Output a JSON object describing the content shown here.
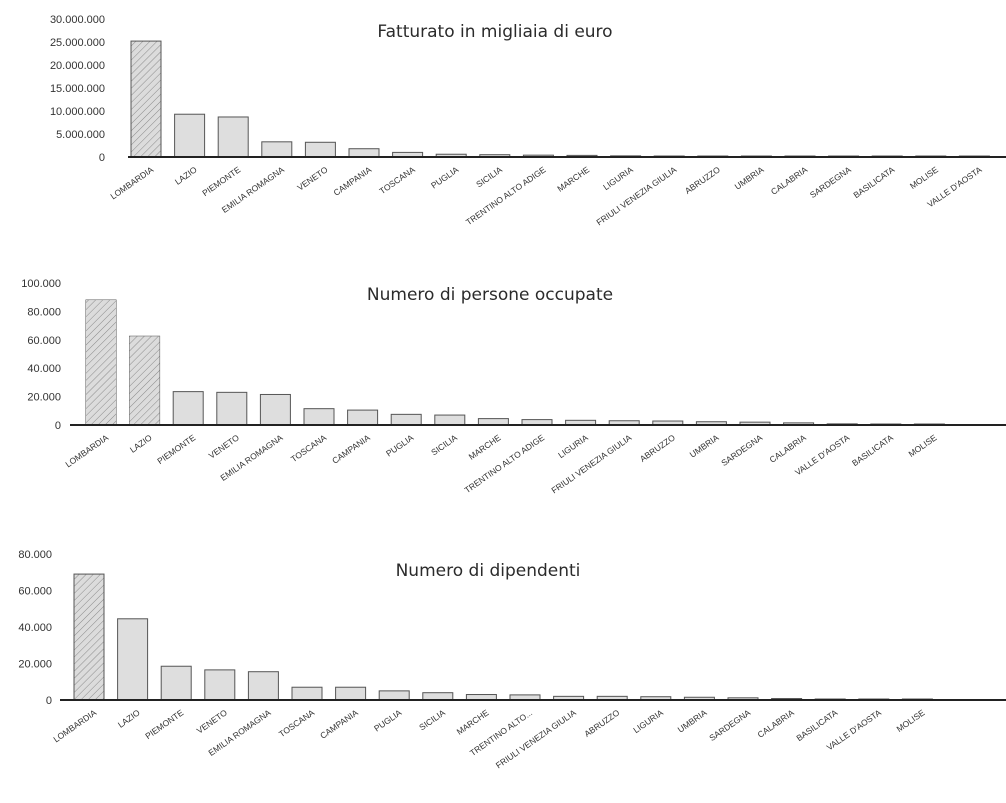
{
  "chart_data": [
    {
      "type": "bar",
      "title": "Fatturato in migliaia di euro",
      "xlabel": "",
      "ylabel": "",
      "ylim": [
        0,
        30000000
      ],
      "yticks": [
        "0",
        "5.000.000",
        "10.000.000",
        "15.000.000",
        "20.000.000",
        "25.000.000",
        "30.000.000"
      ],
      "categories": [
        "LOMBARDIA",
        "LAZIO",
        "PIEMONTE",
        "EMILIA ROMAGNA",
        "VENETO",
        "CAMPANIA",
        "TOSCANA",
        "PUGLIA",
        "SICILIA",
        "TRENTINO ALTO ADIGE",
        "MARCHE",
        "LIGURIA",
        "FRIULI VENEZIA GIULIA",
        "ABRUZZO",
        "UMBRIA",
        "CALABRIA",
        "SARDEGNA",
        "BASILICATA",
        "MOLISE",
        "VALLE D'AOSTA"
      ],
      "values": [
        25200000,
        9300000,
        8700000,
        3300000,
        3200000,
        1800000,
        1000000,
        600000,
        500000,
        400000,
        350000,
        250000,
        200000,
        150000,
        120000,
        100000,
        90000,
        60000,
        40000,
        30000
      ],
      "hatched": [
        0
      ]
    },
    {
      "type": "bar",
      "title": "Numero di persone occupate",
      "xlabel": "",
      "ylabel": "",
      "ylim": [
        0,
        100000
      ],
      "yticks": [
        "0",
        "20.000",
        "40.000",
        "60.000",
        "80.000",
        "100.000"
      ],
      "categories": [
        "LOMBARDIA",
        "LAZIO",
        "PIEMONTE",
        "VENETO",
        "EMILIA ROMAGNA",
        "TOSCANA",
        "CAMPANIA",
        "PUGLIA",
        "SICILIA",
        "MARCHE",
        "TRENTINO ALTO ADIGE",
        "LIGURIA",
        "FRIULI VENEZIA GIULIA",
        "ABRUZZO",
        "UMBRIA",
        "SARDEGNA",
        "CALABRIA",
        "VALLE D'AOSTA",
        "BASILICATA",
        "MOLISE"
      ],
      "values": [
        88000,
        62500,
        23500,
        23000,
        21500,
        11500,
        10500,
        7500,
        7000,
        4500,
        3800,
        3300,
        3000,
        2800,
        2300,
        2000,
        1500,
        800,
        300,
        150
      ],
      "hatched": [
        0,
        1
      ]
    },
    {
      "type": "bar",
      "title": "Numero di dipendenti",
      "xlabel": "",
      "ylabel": "",
      "ylim": [
        0,
        80000
      ],
      "yticks": [
        "0",
        "20.000",
        "40.000",
        "60.000",
        "80.000"
      ],
      "categories": [
        "LOMBARDIA",
        "LAZIO",
        "PIEMONTE",
        "VENETO",
        "EMILIA ROMAGNA",
        "TOSCANA",
        "CAMPANIA",
        "PUGLIA",
        "SICILIA",
        "MARCHE",
        "TRENTINO ALTO...",
        "FRIULI VENEZIA GIULIA",
        "ABRUZZO",
        "LIGURIA",
        "UMBRIA",
        "SARDEGNA",
        "CALABRIA",
        "BASILICATA",
        "VALLE D'AOSTA",
        "MOLISE"
      ],
      "values": [
        69000,
        44500,
        18500,
        16500,
        15500,
        7000,
        7000,
        5000,
        4000,
        3000,
        2800,
        2000,
        2000,
        1800,
        1500,
        1200,
        800,
        200,
        100,
        80
      ],
      "hatched": [
        0
      ]
    }
  ]
}
